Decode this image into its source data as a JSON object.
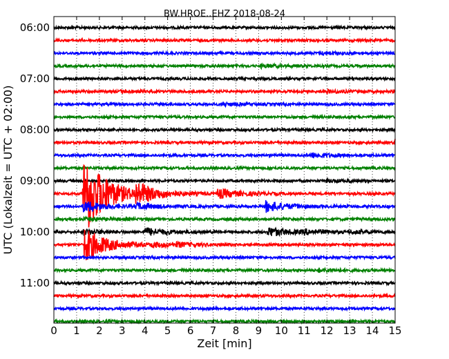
{
  "chart_data": {
    "type": "line",
    "title": "BW.HROE..EHZ 2018-08-24",
    "xlabel": "Zeit  [min]",
    "ylabel": "UTC (Lokalzeit = UTC + 02:00)",
    "xlim": [
      0,
      15
    ],
    "x_ticks": [
      "0",
      "1",
      "2",
      "3",
      "4",
      "5",
      "6",
      "7",
      "8",
      "9",
      "10",
      "11",
      "12",
      "13",
      "14",
      "15"
    ],
    "y_ticks": [
      "06:00",
      "07:00",
      "08:00",
      "09:00",
      "10:00",
      "11:00"
    ],
    "grid": "vertical dotted",
    "trace_interval_minutes": 15,
    "start_time": "06:00",
    "end_time": "12:00",
    "color_cycle": [
      "#000000",
      "#ff0000",
      "#0000ff",
      "#008000"
    ],
    "traces": [
      {
        "start": "06:00",
        "color": "#000000",
        "events": []
      },
      {
        "start": "06:15",
        "color": "#ff0000",
        "events": []
      },
      {
        "start": "06:30",
        "color": "#0000ff",
        "events": [
          {
            "t": 11.8,
            "amp": 0.25
          }
        ]
      },
      {
        "start": "06:45",
        "color": "#008000",
        "events": [
          {
            "t": 9.1,
            "amp": 0.3
          }
        ]
      },
      {
        "start": "07:00",
        "color": "#000000",
        "events": []
      },
      {
        "start": "07:15",
        "color": "#ff0000",
        "events": [
          {
            "t": 2.9,
            "amp": 0.2
          },
          {
            "t": 12.0,
            "amp": 0.25
          }
        ]
      },
      {
        "start": "07:30",
        "color": "#0000ff",
        "events": [
          {
            "t": 7.4,
            "amp": 0.25
          }
        ]
      },
      {
        "start": "07:45",
        "color": "#008000",
        "events": []
      },
      {
        "start": "08:00",
        "color": "#000000",
        "events": []
      },
      {
        "start": "08:15",
        "color": "#ff0000",
        "events": [
          {
            "t": 15.0,
            "amp": 0.6
          }
        ]
      },
      {
        "start": "08:30",
        "color": "#0000ff",
        "events": [
          {
            "t": 11.3,
            "amp": 0.5
          }
        ]
      },
      {
        "start": "08:45",
        "color": "#008000",
        "events": []
      },
      {
        "start": "09:00",
        "color": "#000000",
        "events": [
          {
            "t": 12.0,
            "amp": 0.2
          }
        ]
      },
      {
        "start": "09:15",
        "color": "#ff0000",
        "events": [
          {
            "t": 1.3,
            "amp": 10.0
          },
          {
            "t": 3.6,
            "amp": 2.0
          },
          {
            "t": 7.2,
            "amp": 1.0
          }
        ]
      },
      {
        "start": "09:30",
        "color": "#0000ff",
        "events": [
          {
            "t": 1.3,
            "amp": 1.2
          },
          {
            "t": 3.6,
            "amp": 0.6
          },
          {
            "t": 9.3,
            "amp": 1.2
          }
        ]
      },
      {
        "start": "09:45",
        "color": "#008000",
        "events": [
          {
            "t": 1.3,
            "amp": 0.3
          }
        ]
      },
      {
        "start": "10:00",
        "color": "#000000",
        "events": [
          {
            "t": 1.3,
            "amp": 0.5
          },
          {
            "t": 4.0,
            "amp": 0.8
          },
          {
            "t": 9.4,
            "amp": 1.0
          },
          {
            "t": 11.0,
            "amp": 0.4
          },
          {
            "t": 13.0,
            "amp": 0.3
          }
        ]
      },
      {
        "start": "10:15",
        "color": "#ff0000",
        "events": [
          {
            "t": 1.3,
            "amp": 4.0
          },
          {
            "t": 4.3,
            "amp": 0.4
          },
          {
            "t": 5.4,
            "amp": 0.35
          }
        ]
      },
      {
        "start": "10:30",
        "color": "#0000ff",
        "events": []
      },
      {
        "start": "10:45",
        "color": "#008000",
        "events": [
          {
            "t": 11.6,
            "amp": 0.35
          }
        ]
      },
      {
        "start": "11:00",
        "color": "#000000",
        "events": []
      },
      {
        "start": "11:15",
        "color": "#ff0000",
        "events": []
      },
      {
        "start": "11:30",
        "color": "#0000ff",
        "events": []
      },
      {
        "start": "11:45",
        "color": "#008000",
        "events": []
      }
    ]
  }
}
